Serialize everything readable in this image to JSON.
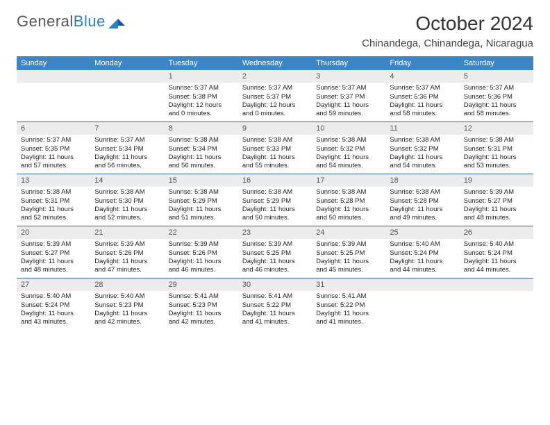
{
  "logo": {
    "text1": "General",
    "text2": "Blue"
  },
  "title": "October 2024",
  "location": "Chinandega, Chinandega, Nicaragua",
  "colors": {
    "header_bg": "#3d86c6",
    "header_text": "#ffffff",
    "daynum_bg": "#ececec",
    "border": "#2b5f8f",
    "logo_blue": "#2b7fc3"
  },
  "day_names": [
    "Sunday",
    "Monday",
    "Tuesday",
    "Wednesday",
    "Thursday",
    "Friday",
    "Saturday"
  ],
  "weeks": [
    [
      {
        "n": "",
        "sr": "",
        "ss": "",
        "d1": "",
        "d2": ""
      },
      {
        "n": "",
        "sr": "",
        "ss": "",
        "d1": "",
        "d2": ""
      },
      {
        "n": "1",
        "sr": "Sunrise: 5:37 AM",
        "ss": "Sunset: 5:38 PM",
        "d1": "Daylight: 12 hours",
        "d2": "and 0 minutes."
      },
      {
        "n": "2",
        "sr": "Sunrise: 5:37 AM",
        "ss": "Sunset: 5:37 PM",
        "d1": "Daylight: 12 hours",
        "d2": "and 0 minutes."
      },
      {
        "n": "3",
        "sr": "Sunrise: 5:37 AM",
        "ss": "Sunset: 5:37 PM",
        "d1": "Daylight: 11 hours",
        "d2": "and 59 minutes."
      },
      {
        "n": "4",
        "sr": "Sunrise: 5:37 AM",
        "ss": "Sunset: 5:36 PM",
        "d1": "Daylight: 11 hours",
        "d2": "and 58 minutes."
      },
      {
        "n": "5",
        "sr": "Sunrise: 5:37 AM",
        "ss": "Sunset: 5:36 PM",
        "d1": "Daylight: 11 hours",
        "d2": "and 58 minutes."
      }
    ],
    [
      {
        "n": "6",
        "sr": "Sunrise: 5:37 AM",
        "ss": "Sunset: 5:35 PM",
        "d1": "Daylight: 11 hours",
        "d2": "and 57 minutes."
      },
      {
        "n": "7",
        "sr": "Sunrise: 5:37 AM",
        "ss": "Sunset: 5:34 PM",
        "d1": "Daylight: 11 hours",
        "d2": "and 56 minutes."
      },
      {
        "n": "8",
        "sr": "Sunrise: 5:38 AM",
        "ss": "Sunset: 5:34 PM",
        "d1": "Daylight: 11 hours",
        "d2": "and 56 minutes."
      },
      {
        "n": "9",
        "sr": "Sunrise: 5:38 AM",
        "ss": "Sunset: 5:33 PM",
        "d1": "Daylight: 11 hours",
        "d2": "and 55 minutes."
      },
      {
        "n": "10",
        "sr": "Sunrise: 5:38 AM",
        "ss": "Sunset: 5:32 PM",
        "d1": "Daylight: 11 hours",
        "d2": "and 54 minutes."
      },
      {
        "n": "11",
        "sr": "Sunrise: 5:38 AM",
        "ss": "Sunset: 5:32 PM",
        "d1": "Daylight: 11 hours",
        "d2": "and 54 minutes."
      },
      {
        "n": "12",
        "sr": "Sunrise: 5:38 AM",
        "ss": "Sunset: 5:31 PM",
        "d1": "Daylight: 11 hours",
        "d2": "and 53 minutes."
      }
    ],
    [
      {
        "n": "13",
        "sr": "Sunrise: 5:38 AM",
        "ss": "Sunset: 5:31 PM",
        "d1": "Daylight: 11 hours",
        "d2": "and 52 minutes."
      },
      {
        "n": "14",
        "sr": "Sunrise: 5:38 AM",
        "ss": "Sunset: 5:30 PM",
        "d1": "Daylight: 11 hours",
        "d2": "and 52 minutes."
      },
      {
        "n": "15",
        "sr": "Sunrise: 5:38 AM",
        "ss": "Sunset: 5:29 PM",
        "d1": "Daylight: 11 hours",
        "d2": "and 51 minutes."
      },
      {
        "n": "16",
        "sr": "Sunrise: 5:38 AM",
        "ss": "Sunset: 5:29 PM",
        "d1": "Daylight: 11 hours",
        "d2": "and 50 minutes."
      },
      {
        "n": "17",
        "sr": "Sunrise: 5:38 AM",
        "ss": "Sunset: 5:28 PM",
        "d1": "Daylight: 11 hours",
        "d2": "and 50 minutes."
      },
      {
        "n": "18",
        "sr": "Sunrise: 5:38 AM",
        "ss": "Sunset: 5:28 PM",
        "d1": "Daylight: 11 hours",
        "d2": "and 49 minutes."
      },
      {
        "n": "19",
        "sr": "Sunrise: 5:39 AM",
        "ss": "Sunset: 5:27 PM",
        "d1": "Daylight: 11 hours",
        "d2": "and 48 minutes."
      }
    ],
    [
      {
        "n": "20",
        "sr": "Sunrise: 5:39 AM",
        "ss": "Sunset: 5:27 PM",
        "d1": "Daylight: 11 hours",
        "d2": "and 48 minutes."
      },
      {
        "n": "21",
        "sr": "Sunrise: 5:39 AM",
        "ss": "Sunset: 5:26 PM",
        "d1": "Daylight: 11 hours",
        "d2": "and 47 minutes."
      },
      {
        "n": "22",
        "sr": "Sunrise: 5:39 AM",
        "ss": "Sunset: 5:26 PM",
        "d1": "Daylight: 11 hours",
        "d2": "and 46 minutes."
      },
      {
        "n": "23",
        "sr": "Sunrise: 5:39 AM",
        "ss": "Sunset: 5:25 PM",
        "d1": "Daylight: 11 hours",
        "d2": "and 46 minutes."
      },
      {
        "n": "24",
        "sr": "Sunrise: 5:39 AM",
        "ss": "Sunset: 5:25 PM",
        "d1": "Daylight: 11 hours",
        "d2": "and 45 minutes."
      },
      {
        "n": "25",
        "sr": "Sunrise: 5:40 AM",
        "ss": "Sunset: 5:24 PM",
        "d1": "Daylight: 11 hours",
        "d2": "and 44 minutes."
      },
      {
        "n": "26",
        "sr": "Sunrise: 5:40 AM",
        "ss": "Sunset: 5:24 PM",
        "d1": "Daylight: 11 hours",
        "d2": "and 44 minutes."
      }
    ],
    [
      {
        "n": "27",
        "sr": "Sunrise: 5:40 AM",
        "ss": "Sunset: 5:24 PM",
        "d1": "Daylight: 11 hours",
        "d2": "and 43 minutes."
      },
      {
        "n": "28",
        "sr": "Sunrise: 5:40 AM",
        "ss": "Sunset: 5:23 PM",
        "d1": "Daylight: 11 hours",
        "d2": "and 42 minutes."
      },
      {
        "n": "29",
        "sr": "Sunrise: 5:41 AM",
        "ss": "Sunset: 5:23 PM",
        "d1": "Daylight: 11 hours",
        "d2": "and 42 minutes."
      },
      {
        "n": "30",
        "sr": "Sunrise: 5:41 AM",
        "ss": "Sunset: 5:22 PM",
        "d1": "Daylight: 11 hours",
        "d2": "and 41 minutes."
      },
      {
        "n": "31",
        "sr": "Sunrise: 5:41 AM",
        "ss": "Sunset: 5:22 PM",
        "d1": "Daylight: 11 hours",
        "d2": "and 41 minutes."
      },
      {
        "n": "",
        "sr": "",
        "ss": "",
        "d1": "",
        "d2": ""
      },
      {
        "n": "",
        "sr": "",
        "ss": "",
        "d1": "",
        "d2": ""
      }
    ]
  ]
}
